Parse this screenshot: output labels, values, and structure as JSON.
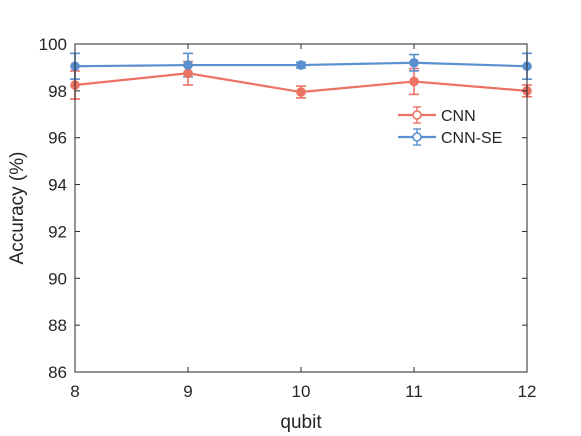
{
  "chart_data": {
    "type": "line",
    "title": "",
    "xlabel": "qubit",
    "ylabel": "Accuracy (%)",
    "x": [
      8,
      9,
      10,
      11,
      12
    ],
    "xlim": [
      8,
      12
    ],
    "ylim": [
      86,
      100
    ],
    "xticks": [
      8,
      9,
      10,
      11,
      12
    ],
    "yticks": [
      86,
      88,
      90,
      92,
      94,
      96,
      98,
      100
    ],
    "grid": false,
    "legend_position": "right, upper-middle inside plot",
    "series": [
      {
        "name": "CNN",
        "color": "#ec7264",
        "marker": "circle-with-square",
        "values": [
          98.25,
          98.75,
          97.95,
          98.4,
          98.0
        ],
        "errors": [
          0.6,
          0.5,
          0.25,
          0.55,
          0.25
        ]
      },
      {
        "name": "CNN-SE",
        "color": "#5b8fd0",
        "marker": "circle-with-square",
        "values": [
          99.05,
          99.1,
          99.1,
          99.2,
          99.05
        ],
        "errors": [
          0.55,
          0.5,
          0.12,
          0.35,
          0.55
        ]
      }
    ]
  }
}
